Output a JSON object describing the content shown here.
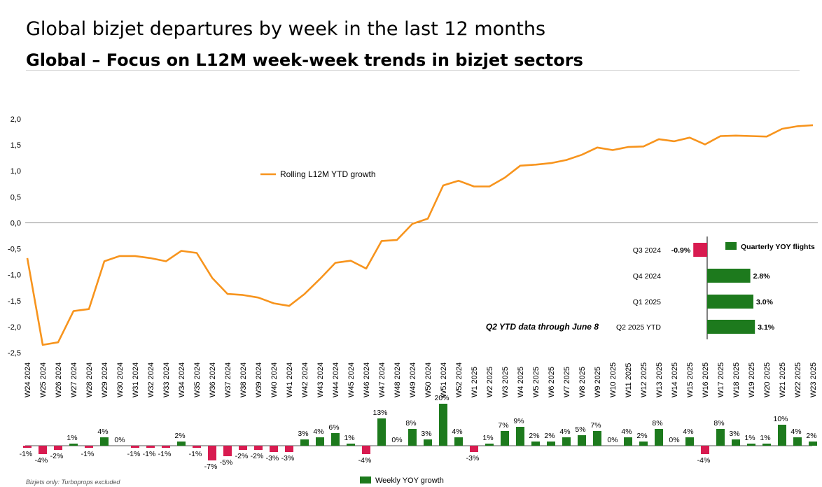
{
  "header": {
    "title": "Global bizjet departures by week in the last 12 months",
    "subtitle": "Global – Focus on L12M week-week trends in bizjet sectors"
  },
  "chart_data": [
    {
      "type": "line",
      "series_name": "Rolling L12M YTD growth",
      "color": "#f7941d",
      "ylim": [
        -2.5,
        2.0
      ],
      "yticks": [
        "2,0",
        "1,5",
        "1,0",
        "0,5",
        "0,0",
        "-0,5",
        "-1,0",
        "-1,5",
        "-2,0",
        "-2,5"
      ],
      "categories": [
        "W24 2024",
        "W25 2024",
        "W26 2024",
        "W27 2024",
        "W28 2024",
        "W29 2024",
        "W30 2024",
        "W31 2024",
        "W32 2024",
        "W33 2024",
        "W34 2024",
        "W35 2024",
        "W36 2024",
        "W37 2024",
        "W38 2024",
        "W39 2024",
        "W40 2024",
        "W41 2024",
        "W42 2024",
        "W43 2024",
        "W44 2024",
        "W45 2024",
        "W46 2024",
        "W47 2024",
        "W48 2024",
        "W49 2024",
        "W50 2024",
        "W51 2024",
        "W52 2024",
        "W1 2025",
        "W2 2025",
        "W3 2025",
        "W4 2025",
        "W5 2025",
        "W6 2025",
        "W7 2025",
        "W8 2025",
        "W9 2025",
        "W10 2025",
        "W11 2025",
        "W12 2025",
        "W13 2025",
        "W14 2025",
        "W15 2025",
        "W16 2025",
        "W17 2025",
        "W18 2025",
        "W19 2025",
        "W20 2025",
        "W21 2025",
        "W22 2025",
        "W23 2025"
      ],
      "values": [
        -0.68,
        -2.35,
        -2.3,
        -1.7,
        -1.66,
        -0.74,
        -0.64,
        -0.64,
        -0.68,
        -0.74,
        -0.54,
        -0.58,
        -1.06,
        -1.37,
        -1.39,
        -1.44,
        -1.55,
        -1.6,
        -1.37,
        -1.08,
        -0.77,
        -0.73,
        -0.88,
        -0.35,
        -0.33,
        -0.02,
        0.08,
        0.72,
        0.81,
        0.7,
        0.7,
        0.87,
        1.1,
        1.12,
        1.15,
        1.21,
        1.31,
        1.45,
        1.4,
        1.46,
        1.47,
        1.61,
        1.57,
        1.64,
        1.51,
        1.67,
        1.68,
        1.67,
        1.66,
        1.81,
        1.86,
        1.88
      ]
    },
    {
      "type": "bar",
      "orientation": "horizontal",
      "legend": "Quarterly YOY flights",
      "categories": [
        "Q3 2024",
        "Q4 2024",
        "Q1 2025",
        "Q2 2025 YTD"
      ],
      "values": [
        -0.9,
        2.8,
        3.0,
        3.1
      ],
      "labels": [
        "-0.9%",
        "2.8%",
        "3.0%",
        "3.1%"
      ],
      "annotation": "Q2 YTD data through June 8",
      "colors": {
        "positive": "#1d7a1d",
        "negative": "#d81b50"
      }
    },
    {
      "type": "bar",
      "legend": "Weekly YOY growth",
      "values": [
        -1,
        -4,
        -2,
        1,
        -1,
        4,
        0,
        -1,
        -1,
        -1,
        2,
        -1,
        -7,
        -5,
        -2,
        -2,
        -3,
        -3,
        3,
        4,
        6,
        1,
        -4,
        13,
        0,
        8,
        3,
        20,
        4,
        -3,
        1,
        7,
        9,
        2,
        2,
        4,
        5,
        7,
        0,
        4,
        2,
        8,
        0,
        4,
        -4,
        8,
        3,
        1,
        1,
        10,
        4,
        2
      ],
      "labels": [
        "-1%",
        "-4%",
        "-2%",
        "1%",
        "-1%",
        "4%",
        "0%",
        "-1%",
        "-1%",
        "-1%",
        "2%",
        "-1%",
        "-7%",
        "-5%",
        "-2%",
        "-2%",
        "-3%",
        "-3%",
        "3%",
        "4%",
        "6%",
        "1%",
        "-4%",
        "13%",
        "0%",
        "8%",
        "3%",
        "20%",
        "4%",
        "-3%",
        "1%",
        "7%",
        "9%",
        "2%",
        "2%",
        "4%",
        "5%",
        "7%",
        "0%",
        "4%",
        "2%",
        "8%",
        "0%",
        "4%",
        "-4%",
        "8%",
        "3%",
        "1%",
        "1%",
        "10%",
        "4%",
        "2%"
      ],
      "colors": {
        "positive": "#1d7a1d",
        "negative": "#d81b50"
      }
    }
  ],
  "footnote": "Bizjets only: Turboprops excluded"
}
